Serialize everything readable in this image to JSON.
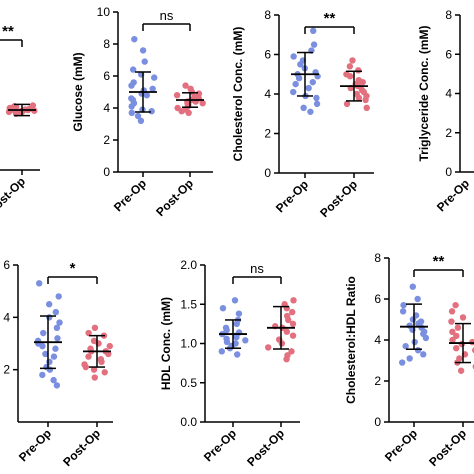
{
  "colors": {
    "pre": "#7b8fe0",
    "post": "#e2707f",
    "axis": "#000000",
    "stat": "#000000"
  },
  "categories": [
    "Pre-Op",
    "Post-Op"
  ],
  "chart_data": [
    {
      "id": "p1",
      "type": "scatter",
      "ylabel": "",
      "ylim": [
        2,
        6
      ],
      "yticks": [],
      "significance": "**",
      "series": [
        {
          "name": "Post-Op",
          "mean": 3.6,
          "sd": 0.15,
          "values": [
            3.55,
            3.6,
            3.65,
            3.5,
            3.7,
            3.62,
            3.58,
            3.66,
            3.52,
            3.72,
            3.6,
            3.63,
            3.57,
            3.68,
            3.55,
            3.61
          ]
        }
      ]
    },
    {
      "id": "p2",
      "type": "scatter",
      "ylabel": "Glucose (mM)",
      "ylim": [
        0,
        10
      ],
      "yticks": [
        0,
        2,
        4,
        6,
        8,
        10
      ],
      "significance": "ns",
      "series": [
        {
          "name": "Pre-Op",
          "mean": 5.0,
          "sd": 1.25,
          "values": [
            8.3,
            7.6,
            6.9,
            6.4,
            6.1,
            5.9,
            5.6,
            5.4,
            5.2,
            5.1,
            4.9,
            4.8,
            4.6,
            4.5,
            4.3,
            4.1,
            3.9,
            3.8,
            3.7,
            3.5,
            3.2
          ]
        },
        {
          "name": "Post-Op",
          "mean": 4.5,
          "sd": 0.45,
          "values": [
            5.4,
            5.2,
            5.0,
            4.9,
            4.8,
            4.7,
            4.6,
            4.6,
            4.5,
            4.4,
            4.4,
            4.3,
            4.3,
            4.2,
            4.1,
            4.0,
            3.9,
            3.8,
            3.7
          ]
        }
      ]
    },
    {
      "id": "p3",
      "type": "scatter",
      "ylabel": "Cholesterol Conc. (mM)",
      "ylim": [
        0,
        8
      ],
      "yticks": [
        0,
        2,
        4,
        6,
        8
      ],
      "significance": "**",
      "series": [
        {
          "name": "Pre-Op",
          "mean": 5.0,
          "sd": 1.1,
          "values": [
            7.2,
            6.5,
            6.2,
            5.9,
            5.7,
            5.5,
            5.3,
            5.1,
            5.0,
            4.9,
            4.8,
            4.6,
            4.5,
            4.3,
            4.1,
            3.9,
            3.8,
            3.5,
            3.3,
            3.1
          ]
        },
        {
          "name": "Post-Op",
          "mean": 4.4,
          "sd": 0.75,
          "values": [
            5.7,
            5.4,
            5.2,
            5.0,
            4.9,
            4.7,
            4.6,
            4.5,
            4.4,
            4.3,
            4.2,
            4.1,
            4.0,
            3.9,
            3.8,
            3.7,
            3.5,
            3.3
          ]
        }
      ]
    },
    {
      "id": "p4",
      "type": "scatter",
      "ylabel": "Triglyceride Conc. (mM)",
      "ylim": [
        0,
        8
      ],
      "yticks": [
        0,
        2,
        4,
        6,
        8
      ],
      "significance": "",
      "series": []
    },
    {
      "id": "p5",
      "type": "scatter",
      "ylabel": "",
      "ylim": [
        0,
        6
      ],
      "yticks": [
        2,
        4,
        6
      ],
      "significance": "*",
      "series": [
        {
          "name": "Pre-Op",
          "mean": 3.05,
          "sd": 1.0,
          "values": [
            5.3,
            4.8,
            4.5,
            4.2,
            4.0,
            3.8,
            3.6,
            3.4,
            3.2,
            3.1,
            3.0,
            2.9,
            2.8,
            2.6,
            2.5,
            2.3,
            2.1,
            2.0,
            1.8,
            1.6,
            1.4
          ]
        },
        {
          "name": "Post-Op",
          "mean": 2.7,
          "sd": 0.6,
          "values": [
            3.6,
            3.4,
            3.3,
            3.1,
            3.0,
            2.9,
            2.8,
            2.7,
            2.7,
            2.6,
            2.5,
            2.4,
            2.3,
            2.2,
            2.1,
            2.0,
            1.9,
            1.7
          ]
        }
      ]
    },
    {
      "id": "p6",
      "type": "scatter",
      "ylabel": "HDL Conc. (mM)",
      "ylim": [
        0,
        2
      ],
      "yticks": [
        0.0,
        0.5,
        1.0,
        1.5,
        2.0
      ],
      "significance": "ns",
      "series": [
        {
          "name": "Pre-Op",
          "mean": 1.12,
          "sd": 0.18,
          "values": [
            1.55,
            1.45,
            1.38,
            1.3,
            1.25,
            1.2,
            1.17,
            1.14,
            1.12,
            1.1,
            1.08,
            1.06,
            1.04,
            1.02,
            1.0,
            0.97,
            0.94,
            0.9,
            0.86
          ]
        },
        {
          "name": "Post-Op",
          "mean": 1.2,
          "sd": 0.27,
          "values": [
            1.55,
            1.5,
            1.45,
            1.4,
            1.35,
            1.3,
            1.25,
            1.22,
            1.2,
            1.15,
            1.1,
            1.05,
            1.0,
            0.95,
            0.9,
            0.85,
            0.8
          ]
        }
      ]
    },
    {
      "id": "p7",
      "type": "scatter",
      "ylabel": "Cholesterol:HDL Ratio",
      "ylim": [
        0,
        8
      ],
      "yticks": [
        0,
        2,
        4,
        6,
        8
      ],
      "significance": "**",
      "series": [
        {
          "name": "Pre-Op",
          "mean": 4.65,
          "sd": 1.1,
          "values": [
            6.6,
            6.0,
            5.7,
            5.4,
            5.2,
            5.0,
            4.9,
            4.8,
            4.7,
            4.6,
            4.5,
            4.4,
            4.3,
            4.1,
            3.9,
            3.7,
            3.5,
            3.3,
            3.1,
            2.9
          ]
        },
        {
          "name": "Post-Op",
          "mean": 3.85,
          "sd": 0.95,
          "values": [
            5.7,
            5.4,
            5.1,
            4.9,
            4.6,
            4.4,
            4.2,
            4.0,
            3.9,
            3.8,
            3.6,
            3.5,
            3.3,
            3.1,
            2.9,
            2.7,
            2.5
          ]
        }
      ]
    }
  ]
}
